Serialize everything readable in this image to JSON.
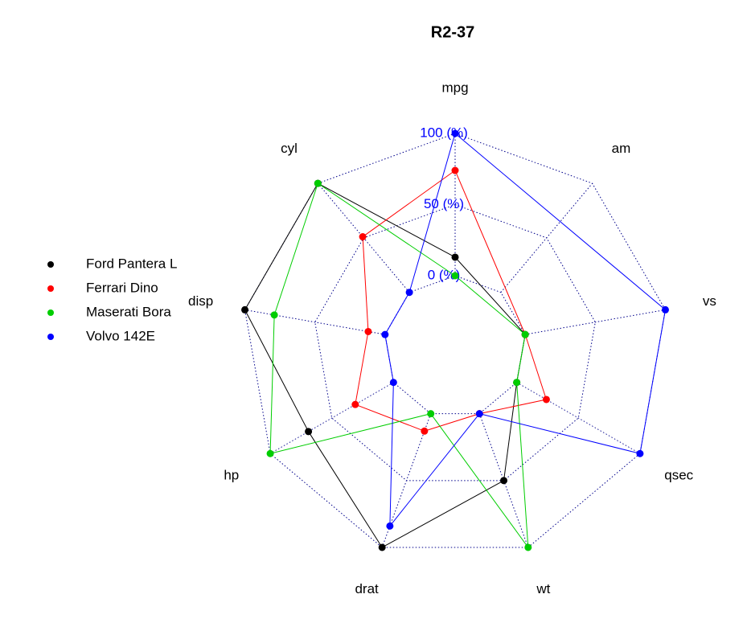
{
  "chart_data": {
    "type": "radar",
    "title": "R2-37",
    "categories": [
      "mpg",
      "cyl",
      "disp",
      "hp",
      "drat",
      "wt",
      "qsec",
      "vs",
      "am"
    ],
    "ylim": [
      0,
      100
    ],
    "yticks": [
      {
        "value": 0,
        "label": "0 (%)"
      },
      {
        "value": 50,
        "label": "50 (%)"
      },
      {
        "value": 100,
        "label": "100 (%)"
      }
    ],
    "tick_color": "#0000ff",
    "grid_color": "#00008b",
    "legend": "left",
    "series": [
      {
        "name": "Ford Pantera L",
        "color": "#000000",
        "values": [
          13,
          100,
          100,
          69,
          100,
          50,
          0,
          0,
          null
        ]
      },
      {
        "name": "Ferrari Dino",
        "color": "#ff0000",
        "values": [
          74,
          51,
          12,
          31,
          13,
          0,
          24,
          0,
          null
        ]
      },
      {
        "name": "Maserati Bora",
        "color": "#00cd00",
        "values": [
          0,
          100,
          79,
          100,
          0,
          100,
          0,
          0,
          null
        ]
      },
      {
        "name": "Volvo 142E",
        "color": "#0000ff",
        "values": [
          100,
          0,
          0,
          0,
          84,
          0,
          100,
          100,
          null
        ]
      }
    ]
  }
}
